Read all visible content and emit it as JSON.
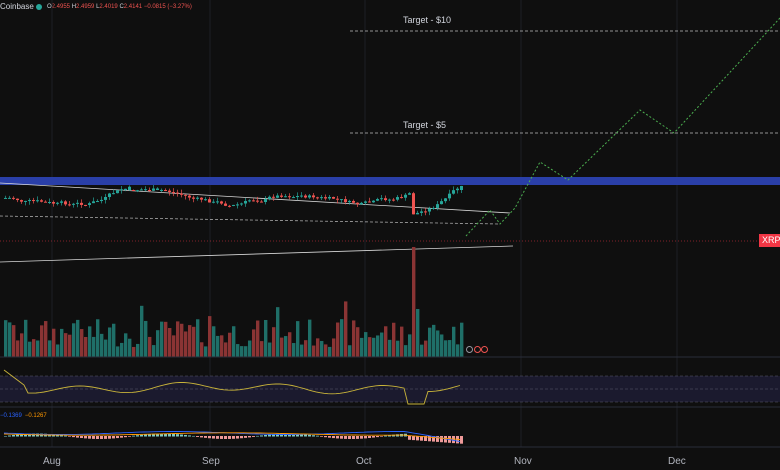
{
  "header": {
    "exchange": "Coinbase",
    "ohlc": {
      "o_label": "O",
      "o": "2.4955",
      "h_label": "H",
      "h": "2.4959",
      "l_label": "L",
      "l": "2.4019",
      "c_label": "C",
      "c": "2.4141",
      "change": "−0.0815 (−3.27%)"
    }
  },
  "annotations": {
    "target_10": "Target - $10",
    "target_5": "Target - $5"
  },
  "price_tag": {
    "symbol": "XRP"
  },
  "macd": {
    "value": "−0.1369",
    "signal": "−0.1267"
  },
  "time_axis": {
    "labels": [
      "Aug",
      "Sep",
      "Oct",
      "Nov",
      "Dec"
    ]
  },
  "colors": {
    "up": "#26a69a",
    "down": "#ef5350",
    "resistance_band": "#2a3fa8",
    "projection": "#4caf50",
    "rsi": "#c9b43a",
    "macd_line": "#2962ff",
    "signal_line": "#ff9800",
    "background": "#0f0f0f"
  },
  "icons": {
    "session_buttons": [
      "circle-icon",
      "circle-icon",
      "circle-icon"
    ]
  }
}
